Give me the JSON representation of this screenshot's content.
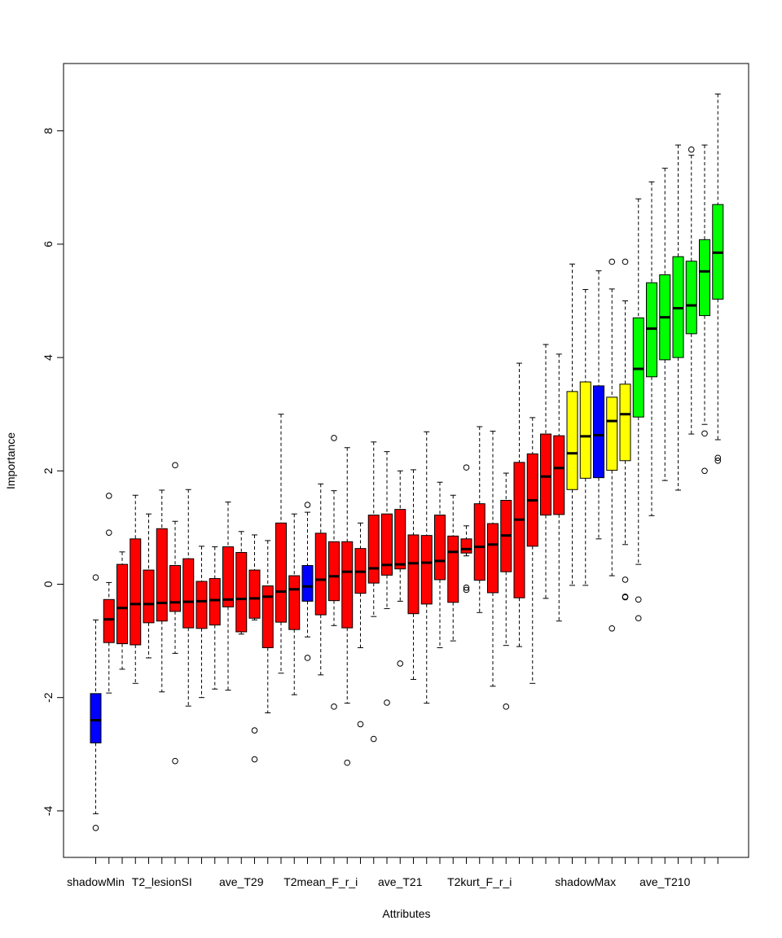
{
  "chart_data": {
    "type": "boxplot",
    "xlabel": "Attributes",
    "ylabel": "Importance",
    "ylim": [
      -4.8,
      9.2
    ],
    "yticks": [
      -4,
      -2,
      0,
      2,
      4,
      6,
      8
    ],
    "grid": false,
    "legend": "none",
    "colors": {
      "shadow": "#0000ff",
      "rejected": "#ff0000",
      "tentative": "#ffff00",
      "confirmed": "#00ff00"
    },
    "xtick_labels": [
      {
        "index": 1,
        "label": "shadowMin"
      },
      {
        "index": 6,
        "label": "T2_lesionSI"
      },
      {
        "index": 12,
        "label": "ave_T29"
      },
      {
        "index": 18,
        "label": "T2mean_F_r_i"
      },
      {
        "index": 24,
        "label": "ave_T21"
      },
      {
        "index": 30,
        "label": "T2kurt_F_r_i"
      },
      {
        "index": 38,
        "label": "shadowMax"
      },
      {
        "index": 44,
        "label": "ave_T210"
      }
    ],
    "boxes": [
      {
        "status": "shadow",
        "min": -4.05,
        "q1": -2.8,
        "median": -2.4,
        "q3": -1.93,
        "max": -0.63,
        "outliers": [
          0.12,
          -4.3
        ]
      },
      {
        "status": "rejected",
        "min": -1.92,
        "q1": -1.03,
        "median": -0.62,
        "q3": -0.27,
        "max": 0.03,
        "outliers": [
          1.56,
          0.91
        ]
      },
      {
        "status": "rejected",
        "min": -1.5,
        "q1": -1.05,
        "median": -0.42,
        "q3": 0.35,
        "max": 0.57,
        "outliers": []
      },
      {
        "status": "rejected",
        "min": -1.75,
        "q1": -1.07,
        "median": -0.35,
        "q3": 0.8,
        "max": 1.57,
        "outliers": []
      },
      {
        "status": "rejected",
        "min": -1.3,
        "q1": -0.68,
        "median": -0.35,
        "q3": 0.25,
        "max": 1.24,
        "outliers": []
      },
      {
        "status": "rejected",
        "min": -1.9,
        "q1": -0.65,
        "median": -0.33,
        "q3": 0.98,
        "max": 1.66,
        "outliers": []
      },
      {
        "status": "rejected",
        "min": -1.22,
        "q1": -0.48,
        "median": -0.32,
        "q3": 0.33,
        "max": 1.11,
        "outliers": [
          2.1,
          -3.12
        ]
      },
      {
        "status": "rejected",
        "min": -2.15,
        "q1": -0.77,
        "median": -0.31,
        "q3": 0.45,
        "max": 1.67,
        "outliers": []
      },
      {
        "status": "rejected",
        "min": -2.0,
        "q1": -0.78,
        "median": -0.3,
        "q3": 0.05,
        "max": 0.67,
        "outliers": []
      },
      {
        "status": "rejected",
        "min": -1.85,
        "q1": -0.72,
        "median": -0.28,
        "q3": 0.1,
        "max": 0.66,
        "outliers": []
      },
      {
        "status": "rejected",
        "min": -1.87,
        "q1": -0.4,
        "median": -0.27,
        "q3": 0.66,
        "max": 1.45,
        "outliers": []
      },
      {
        "status": "rejected",
        "min": -0.88,
        "q1": -0.84,
        "median": -0.26,
        "q3": 0.56,
        "max": 0.93,
        "outliers": []
      },
      {
        "status": "rejected",
        "min": -0.63,
        "q1": -0.6,
        "median": -0.25,
        "q3": 0.25,
        "max": 0.87,
        "outliers": [
          -2.58,
          -3.09
        ]
      },
      {
        "status": "rejected",
        "min": -2.27,
        "q1": -1.12,
        "median": -0.22,
        "q3": -0.03,
        "max": 0.77,
        "outliers": []
      },
      {
        "status": "rejected",
        "min": -1.57,
        "q1": -0.67,
        "median": -0.13,
        "q3": 1.08,
        "max": 3.0,
        "outliers": []
      },
      {
        "status": "rejected",
        "min": -1.95,
        "q1": -0.8,
        "median": -0.09,
        "q3": 0.15,
        "max": 1.24,
        "outliers": []
      },
      {
        "status": "shadow",
        "min": -0.93,
        "q1": -0.3,
        "median": -0.04,
        "q3": 0.33,
        "max": 1.27,
        "outliers": [
          1.4,
          -1.3
        ]
      },
      {
        "status": "rejected",
        "min": -1.6,
        "q1": -0.54,
        "median": 0.08,
        "q3": 0.9,
        "max": 1.77,
        "outliers": []
      },
      {
        "status": "rejected",
        "min": -0.73,
        "q1": -0.29,
        "median": 0.14,
        "q3": 0.75,
        "max": 1.65,
        "outliers": [
          2.58,
          -2.16
        ]
      },
      {
        "status": "rejected",
        "min": -2.1,
        "q1": -0.77,
        "median": 0.22,
        "q3": 0.75,
        "max": 2.41,
        "outliers": [
          -3.15
        ]
      },
      {
        "status": "rejected",
        "min": -1.12,
        "q1": -0.16,
        "median": 0.22,
        "q3": 0.63,
        "max": 1.08,
        "outliers": [
          -2.47
        ]
      },
      {
        "status": "rejected",
        "min": -0.57,
        "q1": 0.02,
        "median": 0.28,
        "q3": 1.22,
        "max": 2.51,
        "outliers": [
          -2.73
        ]
      },
      {
        "status": "rejected",
        "min": -0.43,
        "q1": 0.16,
        "median": 0.34,
        "q3": 1.24,
        "max": 2.34,
        "outliers": [
          -2.09
        ]
      },
      {
        "status": "rejected",
        "min": -0.3,
        "q1": 0.27,
        "median": 0.35,
        "q3": 1.32,
        "max": 2.0,
        "outliers": [
          -1.4
        ]
      },
      {
        "status": "rejected",
        "min": -1.68,
        "q1": -0.52,
        "median": 0.37,
        "q3": 0.87,
        "max": 2.02,
        "outliers": []
      },
      {
        "status": "rejected",
        "min": -2.1,
        "q1": -0.35,
        "median": 0.38,
        "q3": 0.86,
        "max": 2.69,
        "outliers": []
      },
      {
        "status": "rejected",
        "min": -1.12,
        "q1": 0.08,
        "median": 0.41,
        "q3": 1.22,
        "max": 1.8,
        "outliers": []
      },
      {
        "status": "rejected",
        "min": -1.0,
        "q1": -0.32,
        "median": 0.57,
        "q3": 0.85,
        "max": 1.57,
        "outliers": []
      },
      {
        "status": "rejected",
        "min": 0.5,
        "q1": 0.55,
        "median": 0.62,
        "q3": 0.8,
        "max": 1.03,
        "outliers": [
          2.06,
          -0.06,
          -0.1
        ]
      },
      {
        "status": "rejected",
        "min": -0.5,
        "q1": 0.07,
        "median": 0.66,
        "q3": 1.42,
        "max": 2.78,
        "outliers": []
      },
      {
        "status": "rejected",
        "min": -1.8,
        "q1": -0.15,
        "median": 0.7,
        "q3": 1.07,
        "max": 2.7,
        "outliers": []
      },
      {
        "status": "rejected",
        "min": -1.08,
        "q1": 0.22,
        "median": 0.86,
        "q3": 1.48,
        "max": 1.96,
        "outliers": [
          -2.16
        ]
      },
      {
        "status": "rejected",
        "min": -1.1,
        "q1": -0.24,
        "median": 1.14,
        "q3": 2.15,
        "max": 3.9,
        "outliers": []
      },
      {
        "status": "rejected",
        "min": -1.75,
        "q1": 0.67,
        "median": 1.48,
        "q3": 2.3,
        "max": 2.94,
        "outliers": []
      },
      {
        "status": "rejected",
        "min": -0.25,
        "q1": 1.22,
        "median": 1.9,
        "q3": 2.65,
        "max": 4.23,
        "outliers": []
      },
      {
        "status": "rejected",
        "min": -0.65,
        "q1": 1.23,
        "median": 2.05,
        "q3": 2.62,
        "max": 4.06,
        "outliers": []
      },
      {
        "status": "tentative",
        "min": -0.02,
        "q1": 1.67,
        "median": 2.31,
        "q3": 3.4,
        "max": 5.65,
        "outliers": []
      },
      {
        "status": "tentative",
        "min": -0.02,
        "q1": 1.87,
        "median": 2.61,
        "q3": 3.57,
        "max": 5.2,
        "outliers": []
      },
      {
        "status": "shadow",
        "min": 0.8,
        "q1": 1.88,
        "median": 2.63,
        "q3": 3.5,
        "max": 5.53,
        "outliers": []
      },
      {
        "status": "tentative",
        "min": 0.15,
        "q1": 2.01,
        "median": 2.88,
        "q3": 3.3,
        "max": 5.21,
        "outliers": [
          5.69,
          -0.78
        ]
      },
      {
        "status": "tentative",
        "min": 0.7,
        "q1": 2.18,
        "median": 3.0,
        "q3": 3.53,
        "max": 5.0,
        "outliers": [
          5.69,
          0.08,
          -0.22,
          -0.23
        ]
      },
      {
        "status": "confirmed",
        "min": 0.35,
        "q1": 2.95,
        "median": 3.8,
        "q3": 4.7,
        "max": 6.8,
        "outliers": [
          -0.27,
          -0.6
        ]
      },
      {
        "status": "confirmed",
        "min": 1.21,
        "q1": 3.66,
        "median": 4.51,
        "q3": 5.32,
        "max": 7.1,
        "outliers": []
      },
      {
        "status": "confirmed",
        "min": 1.83,
        "q1": 3.96,
        "median": 4.71,
        "q3": 5.46,
        "max": 7.34,
        "outliers": []
      },
      {
        "status": "confirmed",
        "min": 1.66,
        "q1": 4.0,
        "median": 4.87,
        "q3": 5.78,
        "max": 7.75,
        "outliers": []
      },
      {
        "status": "confirmed",
        "min": 2.65,
        "q1": 4.42,
        "median": 4.92,
        "q3": 5.7,
        "max": 7.57,
        "outliers": [
          7.67
        ]
      },
      {
        "status": "confirmed",
        "min": 2.82,
        "q1": 4.74,
        "median": 5.52,
        "q3": 6.08,
        "max": 7.75,
        "outliers": [
          2.66,
          2.0
        ]
      },
      {
        "status": "confirmed",
        "min": 2.55,
        "q1": 5.03,
        "median": 5.85,
        "q3": 6.7,
        "max": 8.65,
        "outliers": [
          2.23,
          2.18
        ]
      }
    ]
  }
}
